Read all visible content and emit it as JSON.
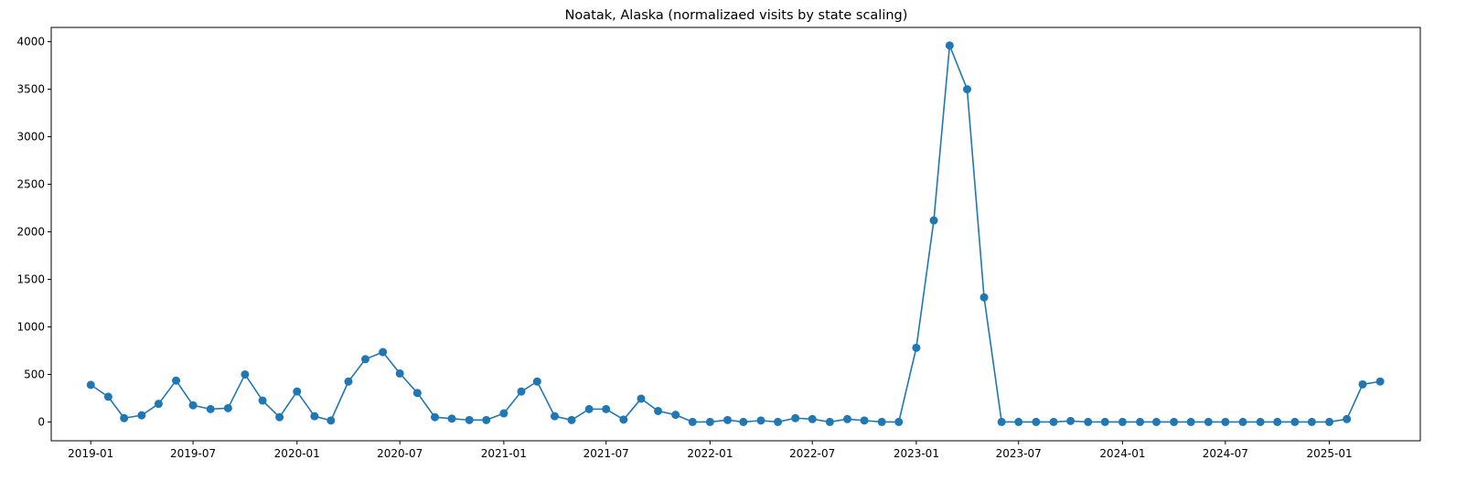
{
  "chart_data": {
    "type": "line",
    "title": "Noatak, Alaska (normalizaed visits by state scaling)",
    "xlabel": "",
    "ylabel": "",
    "series_color": "#1f77b4",
    "grid": false,
    "legend": "none",
    "xlim": [
      "2018-10-23",
      "2025-06-11"
    ],
    "ylim": [
      -198,
      4150
    ],
    "x_ticks": [
      "2019-01",
      "2019-07",
      "2020-01",
      "2020-07",
      "2021-01",
      "2021-07",
      "2022-01",
      "2022-07",
      "2023-01",
      "2023-07",
      "2024-01",
      "2024-07",
      "2025-01"
    ],
    "y_ticks": [
      0,
      500,
      1000,
      1500,
      2000,
      2500,
      3000,
      3500,
      4000
    ],
    "x": [
      "2019-01",
      "2019-02",
      "2019-03",
      "2019-04",
      "2019-05",
      "2019-06",
      "2019-07",
      "2019-08",
      "2019-09",
      "2019-10",
      "2019-11",
      "2019-12",
      "2020-01",
      "2020-02",
      "2020-03",
      "2020-04",
      "2020-05",
      "2020-06",
      "2020-07",
      "2020-08",
      "2020-09",
      "2020-10",
      "2020-11",
      "2020-12",
      "2021-01",
      "2021-02",
      "2021-03",
      "2021-04",
      "2021-05",
      "2021-06",
      "2021-07",
      "2021-08",
      "2021-09",
      "2021-10",
      "2021-11",
      "2021-12",
      "2022-01",
      "2022-02",
      "2022-03",
      "2022-04",
      "2022-05",
      "2022-06",
      "2022-07",
      "2022-08",
      "2022-09",
      "2022-10",
      "2022-11",
      "2022-12",
      "2023-01",
      "2023-02",
      "2023-03",
      "2023-04",
      "2023-05",
      "2023-06",
      "2023-07",
      "2023-08",
      "2023-09",
      "2023-10",
      "2023-11",
      "2023-12",
      "2024-01",
      "2024-02",
      "2024-03",
      "2024-04",
      "2024-05",
      "2024-06",
      "2024-07",
      "2024-08",
      "2024-09",
      "2024-10",
      "2024-11",
      "2024-12",
      "2025-01",
      "2025-02",
      "2025-03",
      "2025-04"
    ],
    "values": [
      390,
      265,
      40,
      70,
      190,
      435,
      175,
      135,
      145,
      500,
      225,
      50,
      320,
      60,
      15,
      425,
      660,
      735,
      510,
      305,
      50,
      35,
      20,
      20,
      90,
      320,
      425,
      60,
      20,
      135,
      135,
      25,
      245,
      115,
      75,
      0,
      0,
      20,
      0,
      15,
      0,
      40,
      30,
      0,
      30,
      15,
      0,
      0,
      780,
      2120,
      3960,
      3500,
      1310,
      0,
      0,
      0,
      0,
      10,
      0,
      0,
      0,
      0,
      0,
      0,
      0,
      0,
      0,
      0,
      0,
      0,
      0,
      0,
      0,
      30,
      395,
      425
    ]
  }
}
